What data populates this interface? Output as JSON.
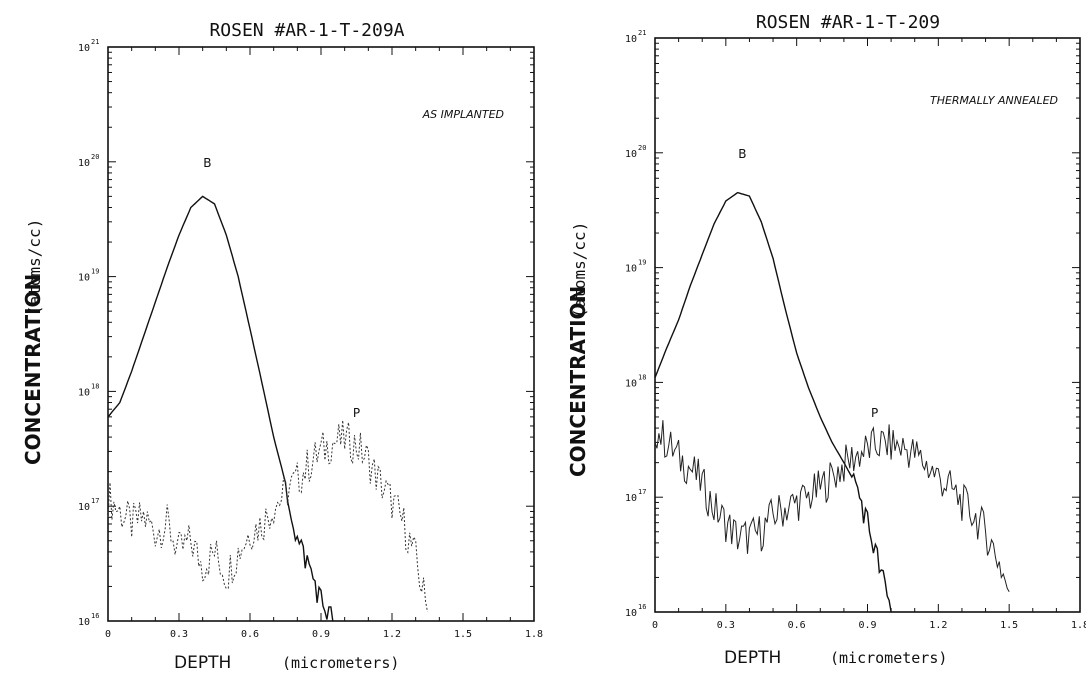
{
  "chart_data": [
    {
      "type": "line",
      "title": "ROSEN #AR-1-T-209A",
      "annotation": "AS IMPLANTED",
      "ylabel_main": "CONCENTRATION",
      "ylabel_unit": "(atoms/cc)",
      "xlabel_main": "DEPTH",
      "xlabel_unit": "(micrometers)",
      "y_scale": "log",
      "ylim": [
        1e+16,
        1e+21
      ],
      "xlim": [
        0,
        1.8
      ],
      "y_ticks": [
        {
          "base": "10",
          "exp": "16"
        },
        {
          "base": "10",
          "exp": "17"
        },
        {
          "base": "10",
          "exp": "18"
        },
        {
          "base": "10",
          "exp": "19"
        },
        {
          "base": "10",
          "exp": "20"
        },
        {
          "base": "10",
          "exp": "21"
        }
      ],
      "x_tick_labels": [
        "0",
        "0.3",
        "0.6",
        "0.9",
        "1.2",
        "1.5",
        "1.8"
      ],
      "x_tick_values": [
        0,
        0.3,
        0.6,
        0.9,
        1.2,
        1.5,
        1.8
      ],
      "series": [
        {
          "name": "B",
          "label_x": 0.42,
          "label_y": 9e+19,
          "x": [
            0,
            0.05,
            0.1,
            0.15,
            0.2,
            0.25,
            0.3,
            0.35,
            0.4,
            0.45,
            0.5,
            0.55,
            0.6,
            0.65,
            0.7,
            0.75,
            0.8,
            0.85,
            0.9,
            0.95
          ],
          "y": [
            6e+17,
            8e+17,
            1.5e+18,
            3e+18,
            6e+18,
            1.2e+19,
            2.3e+19,
            4e+19,
            5e+19,
            4.3e+19,
            2.3e+19,
            1e+19,
            3.5e+18,
            1.2e+18,
            4e+17,
            1.6e+17,
            5e+16,
            3e+16,
            1.5e+16,
            1e+16
          ]
        },
        {
          "name": "P",
          "label_x": 1.05,
          "label_y": 6e+17,
          "x": [
            0,
            0.05,
            0.1,
            0.15,
            0.2,
            0.25,
            0.3,
            0.35,
            0.4,
            0.45,
            0.5,
            0.55,
            0.6,
            0.65,
            0.7,
            0.75,
            0.8,
            0.85,
            0.9,
            0.95,
            1.0,
            1.05,
            1.1,
            1.15,
            1.2,
            1.25,
            1.3,
            1.35
          ],
          "y": [
            1.2e+17,
            9e+16,
            7e+16,
            8e+16,
            6e+16,
            7e+16,
            4e+16,
            5e+16,
            3e+16,
            4e+16,
            2.5e+16,
            4e+16,
            6e+16,
            7e+16,
            1e+17,
            1.3e+17,
            1.7e+17,
            2.3e+17,
            3e+17,
            3.6e+17,
            3.8e+17,
            3.4e+17,
            2.5e+17,
            1.6e+17,
            1.1e+17,
            7e+16,
            3.5e+16,
            1.2e+16
          ]
        }
      ]
    },
    {
      "type": "line",
      "title": "ROSEN #AR-1-T-209",
      "annotation": "THERMALLY ANNEALED",
      "ylabel_main": "CONCENTRATION",
      "ylabel_unit": "(atoms/cc)",
      "xlabel_main": "DEPTH",
      "xlabel_unit": "(micrometers)",
      "y_scale": "log",
      "ylim": [
        1e+16,
        1e+21
      ],
      "xlim": [
        0,
        1.8
      ],
      "y_ticks": [
        {
          "base": "10",
          "exp": "16"
        },
        {
          "base": "10",
          "exp": "17"
        },
        {
          "base": "10",
          "exp": "18"
        },
        {
          "base": "10",
          "exp": "19"
        },
        {
          "base": "10",
          "exp": "20"
        },
        {
          "base": "10",
          "exp": "21"
        }
      ],
      "x_tick_labels": [
        "0",
        "0.3",
        "0.6",
        "0.9",
        "1.2",
        "1.5",
        "1.8"
      ],
      "x_tick_values": [
        0,
        0.3,
        0.6,
        0.9,
        1.2,
        1.5,
        1.8
      ],
      "series": [
        {
          "name": "B",
          "label_x": 0.37,
          "label_y": 9e+19,
          "x": [
            0,
            0.05,
            0.1,
            0.15,
            0.2,
            0.25,
            0.3,
            0.35,
            0.4,
            0.45,
            0.5,
            0.55,
            0.6,
            0.65,
            0.7,
            0.75,
            0.8,
            0.85,
            0.9,
            0.95,
            1.0
          ],
          "y": [
            1.1e+18,
            2e+18,
            3.5e+18,
            7e+18,
            1.3e+19,
            2.4e+19,
            3.8e+19,
            4.5e+19,
            4.2e+19,
            2.5e+19,
            1.2e+19,
            4.5e+18,
            1.8e+18,
            9e+17,
            5e+17,
            3e+17,
            2e+17,
            1.3e+17,
            6e+16,
            2.5e+16,
            1e+16
          ]
        },
        {
          "name": "P",
          "label_x": 0.93,
          "label_y": 5e+17,
          "x": [
            0,
            0.05,
            0.1,
            0.15,
            0.2,
            0.25,
            0.3,
            0.35,
            0.4,
            0.45,
            0.5,
            0.55,
            0.6,
            0.65,
            0.7,
            0.75,
            0.8,
            0.85,
            0.9,
            0.95,
            1.0,
            1.05,
            1.1,
            1.15,
            1.2,
            1.25,
            1.3,
            1.35,
            1.4,
            1.45,
            1.5
          ],
          "y": [
            4e+17,
            3e+17,
            2.2e+17,
            1.8e+17,
            1.3e+17,
            8e+16,
            6e+16,
            4.5e+16,
            4.5e+16,
            5e+16,
            7e+16,
            8e+16,
            9e+16,
            1e+17,
            1.2e+17,
            1.5e+17,
            1.9e+17,
            2.3e+17,
            2.6e+17,
            2.9e+17,
            2.9e+17,
            2.7e+17,
            2.4e+17,
            1.9e+17,
            1.5e+17,
            1.2e+17,
            9e+16,
            7e+16,
            5e+16,
            3e+16,
            1.5e+16
          ]
        }
      ]
    }
  ]
}
